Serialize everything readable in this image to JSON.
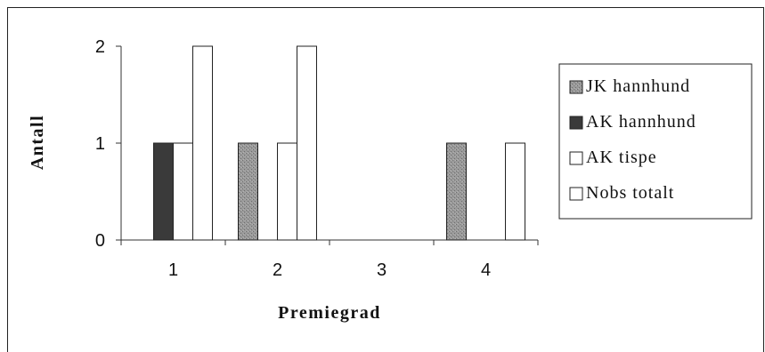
{
  "chart_data": {
    "type": "bar",
    "categories": [
      "1",
      "2",
      "3",
      "4"
    ],
    "series": [
      {
        "name": "JK hannhund",
        "values": [
          0,
          1,
          0,
          1
        ],
        "color": "#8c8c8c"
      },
      {
        "name": "AK hannhund",
        "values": [
          1,
          0,
          0,
          0
        ],
        "color": "#3a3a3a"
      },
      {
        "name": "AK tispe",
        "values": [
          1,
          1,
          0,
          0
        ],
        "color": "#ffffff"
      },
      {
        "name": "Nobs totalt",
        "values": [
          2,
          2,
          0,
          1
        ],
        "color": "#ffffff"
      }
    ],
    "xlabel": "Premiegrad",
    "ylabel": "Antall",
    "ylim": [
      0,
      2
    ],
    "yticks": [
      0,
      1,
      2
    ],
    "legend_position": "right",
    "grid": false
  }
}
